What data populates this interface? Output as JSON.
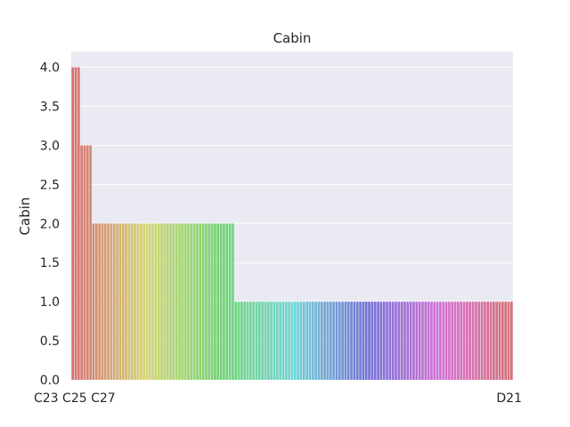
{
  "chart_data": {
    "type": "bar",
    "title": "Cabin",
    "xlabel": "",
    "ylabel": "Cabin",
    "ylim": [
      0,
      4.2
    ],
    "yticks": [
      "0.0",
      "0.5",
      "1.0",
      "1.5",
      "2.0",
      "2.5",
      "3.0",
      "3.5",
      "4.0"
    ],
    "grid": true,
    "style": "seaborn-darkgrid",
    "categories_visible_start": "C23 C25 C27",
    "categories_visible_end": "D21",
    "values": [
      4,
      4,
      4,
      3,
      3,
      3,
      3,
      2,
      2,
      2,
      2,
      2,
      2,
      2,
      2,
      2,
      2,
      2,
      2,
      2,
      2,
      2,
      2,
      2,
      2,
      2,
      2,
      2,
      2,
      2,
      2,
      2,
      2,
      2,
      2,
      2,
      2,
      2,
      2,
      2,
      2,
      2,
      2,
      2,
      2,
      2,
      2,
      2,
      2,
      2,
      2,
      2,
      2,
      2,
      2,
      1,
      1,
      1,
      1,
      1,
      1,
      1,
      1,
      1,
      1,
      1,
      1,
      1,
      1,
      1,
      1,
      1,
      1,
      1,
      1,
      1,
      1,
      1,
      1,
      1,
      1,
      1,
      1,
      1,
      1,
      1,
      1,
      1,
      1,
      1,
      1,
      1,
      1,
      1,
      1,
      1,
      1,
      1,
      1,
      1,
      1,
      1,
      1,
      1,
      1,
      1,
      1,
      1,
      1,
      1,
      1,
      1,
      1,
      1,
      1,
      1,
      1,
      1,
      1,
      1,
      1,
      1,
      1,
      1,
      1,
      1,
      1,
      1,
      1,
      1,
      1,
      1,
      1,
      1,
      1,
      1,
      1,
      1,
      1,
      1,
      1,
      1,
      1,
      1,
      1,
      1,
      1,
      1,
      1
    ]
  }
}
